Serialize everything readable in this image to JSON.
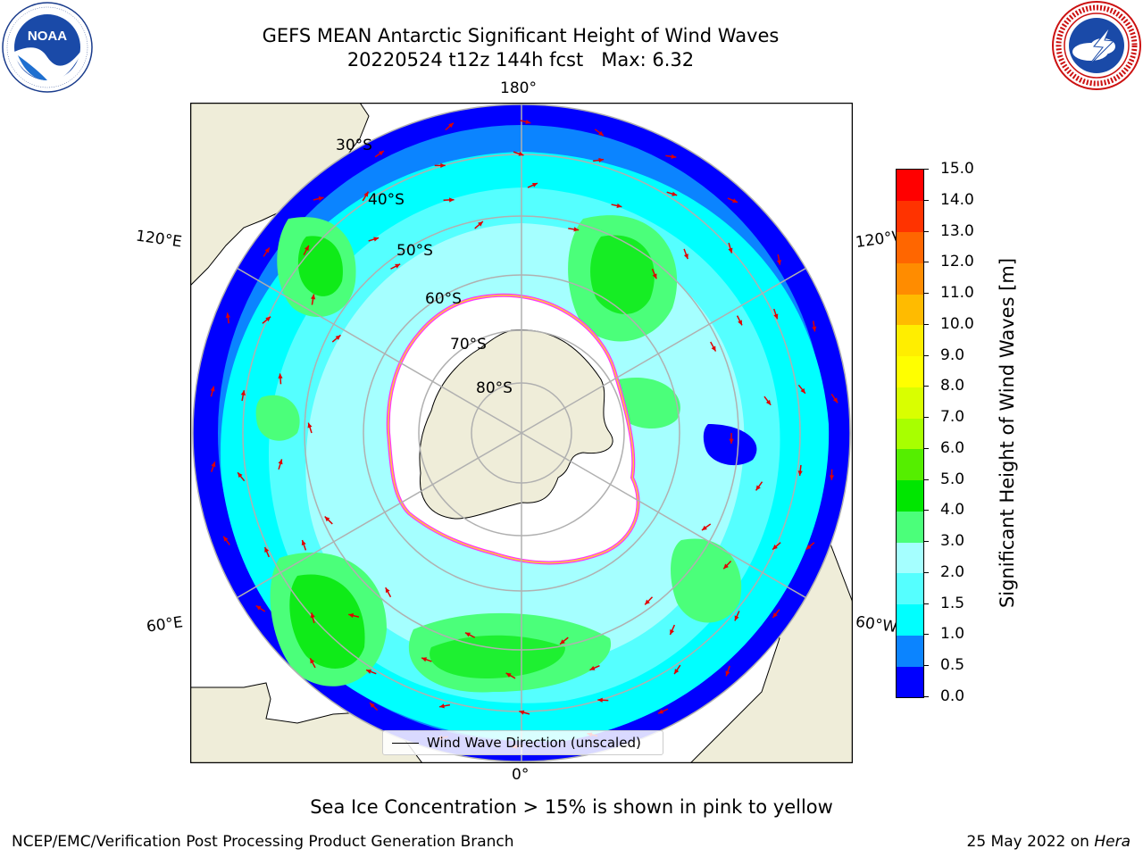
{
  "title": {
    "line1": "GEFS MEAN Antarctic Significant Height of Wind Waves",
    "line2": "20220524 t12z 144h fcst   Max: 6.32"
  },
  "logos": {
    "left": "NOAA",
    "left_ring": "NATIONAL OCEANIC AND ATMOSPHERIC ADMINISTRATION · U.S. DEPARTMENT OF COMMERCE",
    "right_ring": "NATIONAL WEATHER SERVICE"
  },
  "map": {
    "projection": "south-polar-stereographic",
    "longitude_labels": {
      "top": "180°",
      "bottom": "0°",
      "upper_left": "120°E",
      "upper_right": "120°W",
      "lower_left": "60°E",
      "lower_right": "60°W"
    },
    "latitude_labels": [
      "30°S",
      "40°S",
      "50°S",
      "60°S",
      "70°S",
      "80°S"
    ],
    "legend": "Wind Wave Direction (unscaled)",
    "colors": {
      "land": "#efedd9",
      "sea_ice": "#ffffff",
      "ice_edge": [
        "#ff33ff",
        "#ffcc33"
      ],
      "arrow": "#e00000",
      "grid": "#b0b0b0"
    }
  },
  "colorbar": {
    "label": "Significant Height of Wind Waves [m]",
    "ticks": [
      "0.0",
      "0.5",
      "1.0",
      "1.5",
      "2.0",
      "3.0",
      "4.0",
      "5.0",
      "6.0",
      "7.0",
      "8.0",
      "9.0",
      "10.0",
      "11.0",
      "12.0",
      "13.0",
      "14.0",
      "15.0"
    ],
    "colors": [
      "#0000ff",
      "#0b84ff",
      "#00ffff",
      "#55ffff",
      "#a5ffff",
      "#4bff7a",
      "#00e600",
      "#55ee00",
      "#a8ff00",
      "#d9ff00",
      "#ffff00",
      "#ffee00",
      "#ffbb00",
      "#ff8c00",
      "#ff6600",
      "#ff3300",
      "#ff0000"
    ]
  },
  "note": "Sea Ice Concentration > 15% is shown in pink to yellow",
  "footer": {
    "left": "NCEP/EMC/Verification Post Processing Product Generation Branch",
    "right_date": "25 May 2022 on ",
    "right_system": "Hera"
  }
}
